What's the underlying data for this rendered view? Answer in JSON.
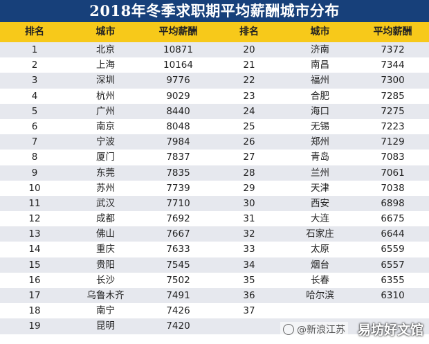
{
  "title": "2018年冬季求职期平均薪酬城市分布",
  "header": [
    "排名",
    "城市",
    "平均薪酬",
    "排名",
    "城市",
    "平均薪酬"
  ],
  "rows": [
    {
      "rank_a": "1",
      "city_a": "北京",
      "pay_a": "10871",
      "rank_b": "20",
      "city_b": "济南",
      "pay_b": "7372"
    },
    {
      "rank_a": "2",
      "city_a": "上海",
      "pay_a": "10164",
      "rank_b": "21",
      "city_b": "南昌",
      "pay_b": "7344"
    },
    {
      "rank_a": "3",
      "city_a": "深圳",
      "pay_a": "9776",
      "rank_b": "22",
      "city_b": "福州",
      "pay_b": "7300"
    },
    {
      "rank_a": "4",
      "city_a": "杭州",
      "pay_a": "9029",
      "rank_b": "23",
      "city_b": "合肥",
      "pay_b": "7285"
    },
    {
      "rank_a": "5",
      "city_a": "广州",
      "pay_a": "8440",
      "rank_b": "24",
      "city_b": "海口",
      "pay_b": "7275"
    },
    {
      "rank_a": "6",
      "city_a": "南京",
      "pay_a": "8048",
      "rank_b": "25",
      "city_b": "无锡",
      "pay_b": "7223"
    },
    {
      "rank_a": "7",
      "city_a": "宁波",
      "pay_a": "7984",
      "rank_b": "26",
      "city_b": "郑州",
      "pay_b": "7129"
    },
    {
      "rank_a": "8",
      "city_a": "厦门",
      "pay_a": "7837",
      "rank_b": "27",
      "city_b": "青岛",
      "pay_b": "7083"
    },
    {
      "rank_a": "9",
      "city_a": "东莞",
      "pay_a": "7835",
      "rank_b": "28",
      "city_b": "兰州",
      "pay_b": "7061"
    },
    {
      "rank_a": "10",
      "city_a": "苏州",
      "pay_a": "7739",
      "rank_b": "29",
      "city_b": "天津",
      "pay_b": "7038"
    },
    {
      "rank_a": "11",
      "city_a": "武汉",
      "pay_a": "7710",
      "rank_b": "30",
      "city_b": "西安",
      "pay_b": "6898"
    },
    {
      "rank_a": "12",
      "city_a": "成都",
      "pay_a": "7692",
      "rank_b": "31",
      "city_b": "大连",
      "pay_b": "6675"
    },
    {
      "rank_a": "13",
      "city_a": "佛山",
      "pay_a": "7667",
      "rank_b": "32",
      "city_b": "石家庄",
      "pay_b": "6644"
    },
    {
      "rank_a": "14",
      "city_a": "重庆",
      "pay_a": "7633",
      "rank_b": "33",
      "city_b": "太原",
      "pay_b": "6559"
    },
    {
      "rank_a": "15",
      "city_a": "贵阳",
      "pay_a": "7545",
      "rank_b": "34",
      "city_b": "烟台",
      "pay_b": "6557"
    },
    {
      "rank_a": "16",
      "city_a": "长沙",
      "pay_a": "7502",
      "rank_b": "35",
      "city_b": "长春",
      "pay_b": "6355"
    },
    {
      "rank_a": "17",
      "city_a": "乌鲁木齐",
      "pay_a": "7491",
      "rank_b": "36",
      "city_b": "哈尔滨",
      "pay_b": "6310"
    },
    {
      "rank_a": "18",
      "city_a": "南宁",
      "pay_a": "7426",
      "rank_b": "37",
      "city_b": "",
      "pay_b": ""
    },
    {
      "rank_a": "19",
      "city_a": "昆明",
      "pay_a": "7420",
      "rank_b": "",
      "city_b": "",
      "pay_b": ""
    }
  ],
  "watermark": {
    "weibo": "@新浪江苏",
    "site": "易坊好文馆"
  },
  "colors": {
    "title_bg": "#17407a",
    "header_bg": "#f7c91a",
    "row_alt": "#e6e8ee"
  }
}
